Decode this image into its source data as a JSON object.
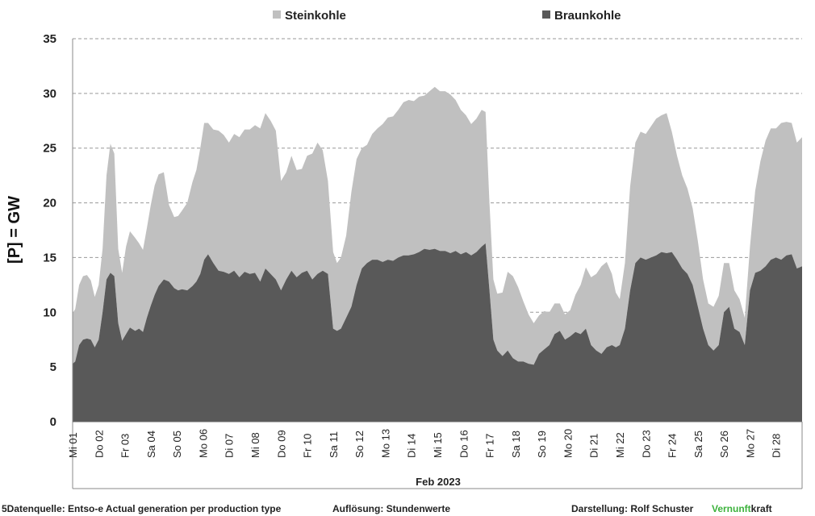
{
  "chart_data": {
    "type": "area",
    "stacked": true,
    "ylabel": "[P]  = GW",
    "xlabel": "Feb 2023",
    "ylim": [
      0,
      35
    ],
    "yticks": [
      0,
      5,
      10,
      15,
      20,
      25,
      30,
      35
    ],
    "grid": true,
    "legend_position": "top",
    "x_tick_labels": [
      "Mi 01",
      "Do 02",
      "Fr 03",
      "Sa 04",
      "So 05",
      "Mo 06",
      "Di 07",
      "Mi 08",
      "Do 09",
      "Fr 10",
      "Sa 11",
      "So 12",
      "Mo 13",
      "Di 14",
      "Mi 15",
      "Do 16",
      "Fr 17",
      "Sa 18",
      "So 19",
      "Mo 20",
      "Di 21",
      "Mi 22",
      "Do 23",
      "Fr 24",
      "Sa 25",
      "So 26",
      "Mo 27",
      "Di 28"
    ],
    "x_day_offset": [
      0,
      1,
      2,
      3,
      4,
      5,
      6,
      7,
      8,
      9,
      10,
      11,
      12,
      13,
      14,
      15,
      16,
      17,
      18,
      19,
      20,
      21,
      22,
      23,
      24,
      25,
      26,
      27
    ],
    "series": [
      {
        "name": "Steinkohle",
        "color": "#c0c0c0",
        "points": [
          [
            0.0,
            4.6
          ],
          [
            0.1,
            4.8
          ],
          [
            0.25,
            5.5
          ],
          [
            0.4,
            5.8
          ],
          [
            0.55,
            5.8
          ],
          [
            0.7,
            5.4
          ],
          [
            0.85,
            4.6
          ],
          [
            1.0,
            5.0
          ],
          [
            1.15,
            5.8
          ],
          [
            1.3,
            9.5
          ],
          [
            1.45,
            11.8
          ],
          [
            1.6,
            11.2
          ],
          [
            1.75,
            6.8
          ],
          [
            1.9,
            6.2
          ],
          [
            2.05,
            8.0
          ],
          [
            2.2,
            8.8
          ],
          [
            2.4,
            8.5
          ],
          [
            2.55,
            7.8
          ],
          [
            2.7,
            7.5
          ],
          [
            2.85,
            8.2
          ],
          [
            3.0,
            9.2
          ],
          [
            3.15,
            10.0
          ],
          [
            3.3,
            10.2
          ],
          [
            3.5,
            9.8
          ],
          [
            3.7,
            7.0
          ],
          [
            3.9,
            6.5
          ],
          [
            4.05,
            6.8
          ],
          [
            4.2,
            7.2
          ],
          [
            4.4,
            8.0
          ],
          [
            4.6,
            9.5
          ],
          [
            4.75,
            10.2
          ],
          [
            4.9,
            11.5
          ],
          [
            5.05,
            12.5
          ],
          [
            5.2,
            12.0
          ],
          [
            5.4,
            12.2
          ],
          [
            5.6,
            12.8
          ],
          [
            5.8,
            12.5
          ],
          [
            6.0,
            12.0
          ],
          [
            6.2,
            12.5
          ],
          [
            6.4,
            12.8
          ],
          [
            6.6,
            13.0
          ],
          [
            6.8,
            13.2
          ],
          [
            7.0,
            13.5
          ],
          [
            7.2,
            14.0
          ],
          [
            7.4,
            14.2
          ],
          [
            7.6,
            14.0
          ],
          [
            7.8,
            13.6
          ],
          [
            8.0,
            10.0
          ],
          [
            8.2,
            9.8
          ],
          [
            8.4,
            10.5
          ],
          [
            8.6,
            9.8
          ],
          [
            8.8,
            9.5
          ],
          [
            9.0,
            10.5
          ],
          [
            9.2,
            11.5
          ],
          [
            9.4,
            12.0
          ],
          [
            9.6,
            11.0
          ],
          [
            9.8,
            8.5
          ],
          [
            10.0,
            7.0
          ],
          [
            10.15,
            6.2
          ],
          [
            10.3,
            6.5
          ],
          [
            10.5,
            7.5
          ],
          [
            10.7,
            10.5
          ],
          [
            10.9,
            11.5
          ],
          [
            11.1,
            11.0
          ],
          [
            11.3,
            10.8
          ],
          [
            11.5,
            11.5
          ],
          [
            11.7,
            12.0
          ],
          [
            11.9,
            12.6
          ],
          [
            12.1,
            13.0
          ],
          [
            12.3,
            13.2
          ],
          [
            12.5,
            13.5
          ],
          [
            12.7,
            14.0
          ],
          [
            12.9,
            14.2
          ],
          [
            13.1,
            14.0
          ],
          [
            13.3,
            14.2
          ],
          [
            13.5,
            14.0
          ],
          [
            13.7,
            14.5
          ],
          [
            13.9,
            14.8
          ],
          [
            14.1,
            14.6
          ],
          [
            14.3,
            14.6
          ],
          [
            14.5,
            14.5
          ],
          [
            14.7,
            13.8
          ],
          [
            14.9,
            13.2
          ],
          [
            15.1,
            12.5
          ],
          [
            15.3,
            12.0
          ],
          [
            15.5,
            12.2
          ],
          [
            15.7,
            12.5
          ],
          [
            15.85,
            12.0
          ],
          [
            16.0,
            8.0
          ],
          [
            16.15,
            5.5
          ],
          [
            16.3,
            5.2
          ],
          [
            16.5,
            5.8
          ],
          [
            16.7,
            7.2
          ],
          [
            16.9,
            7.5
          ],
          [
            17.1,
            6.8
          ],
          [
            17.3,
            5.5
          ],
          [
            17.5,
            4.5
          ],
          [
            17.7,
            3.8
          ],
          [
            17.9,
            3.5
          ],
          [
            18.1,
            3.5
          ],
          [
            18.3,
            3.0
          ],
          [
            18.5,
            2.8
          ],
          [
            18.7,
            2.5
          ],
          [
            18.9,
            2.3
          ],
          [
            19.1,
            2.4
          ],
          [
            19.3,
            3.4
          ],
          [
            19.5,
            4.5
          ],
          [
            19.7,
            5.6
          ],
          [
            19.9,
            6.2
          ],
          [
            20.1,
            7.0
          ],
          [
            20.3,
            8.0
          ],
          [
            20.5,
            7.8
          ],
          [
            20.7,
            6.5
          ],
          [
            20.85,
            5.0
          ],
          [
            21.0,
            4.2
          ],
          [
            21.2,
            6.0
          ],
          [
            21.4,
            9.5
          ],
          [
            21.6,
            11.0
          ],
          [
            21.8,
            11.5
          ],
          [
            22.0,
            11.5
          ],
          [
            22.2,
            12.0
          ],
          [
            22.4,
            12.5
          ],
          [
            22.6,
            12.5
          ],
          [
            22.8,
            12.8
          ],
          [
            23.0,
            11.0
          ],
          [
            23.2,
            9.5
          ],
          [
            23.4,
            8.5
          ],
          [
            23.6,
            7.8
          ],
          [
            23.8,
            7.0
          ],
          [
            24.0,
            6.0
          ],
          [
            24.2,
            4.5
          ],
          [
            24.4,
            3.8
          ],
          [
            24.6,
            4.0
          ],
          [
            24.8,
            4.5
          ],
          [
            25.0,
            4.5
          ],
          [
            25.2,
            4.0
          ],
          [
            25.4,
            3.5
          ],
          [
            25.6,
            3.0
          ],
          [
            25.8,
            2.5
          ],
          [
            26.0,
            4.0
          ],
          [
            26.2,
            7.5
          ],
          [
            26.4,
            10.0
          ],
          [
            26.6,
            11.5
          ],
          [
            26.8,
            12.0
          ],
          [
            27.0,
            11.8
          ],
          [
            27.2,
            12.5
          ],
          [
            27.4,
            12.2
          ],
          [
            27.6,
            12.0
          ],
          [
            27.8,
            11.5
          ],
          [
            28.0,
            11.8
          ]
        ]
      },
      {
        "name": "Braunkohle",
        "color": "#595959",
        "points": [
          [
            0.0,
            5.3
          ],
          [
            0.1,
            5.5
          ],
          [
            0.25,
            7.0
          ],
          [
            0.4,
            7.5
          ],
          [
            0.55,
            7.6
          ],
          [
            0.7,
            7.5
          ],
          [
            0.85,
            6.8
          ],
          [
            1.0,
            7.5
          ],
          [
            1.15,
            10.0
          ],
          [
            1.3,
            13.0
          ],
          [
            1.45,
            13.6
          ],
          [
            1.6,
            13.3
          ],
          [
            1.75,
            9.0
          ],
          [
            1.9,
            7.4
          ],
          [
            2.05,
            8.0
          ],
          [
            2.2,
            8.6
          ],
          [
            2.4,
            8.3
          ],
          [
            2.55,
            8.5
          ],
          [
            2.7,
            8.2
          ],
          [
            2.85,
            9.5
          ],
          [
            3.0,
            10.6
          ],
          [
            3.15,
            11.6
          ],
          [
            3.3,
            12.4
          ],
          [
            3.5,
            13.0
          ],
          [
            3.7,
            12.8
          ],
          [
            3.9,
            12.2
          ],
          [
            4.05,
            12.0
          ],
          [
            4.2,
            12.1
          ],
          [
            4.4,
            12.0
          ],
          [
            4.6,
            12.4
          ],
          [
            4.75,
            12.8
          ],
          [
            4.9,
            13.5
          ],
          [
            5.05,
            14.8
          ],
          [
            5.2,
            15.3
          ],
          [
            5.4,
            14.5
          ],
          [
            5.6,
            13.8
          ],
          [
            5.8,
            13.7
          ],
          [
            6.0,
            13.5
          ],
          [
            6.2,
            13.8
          ],
          [
            6.4,
            13.2
          ],
          [
            6.6,
            13.7
          ],
          [
            6.8,
            13.5
          ],
          [
            7.0,
            13.6
          ],
          [
            7.2,
            12.8
          ],
          [
            7.4,
            14.0
          ],
          [
            7.6,
            13.5
          ],
          [
            7.8,
            13.0
          ],
          [
            8.0,
            12.0
          ],
          [
            8.2,
            13.0
          ],
          [
            8.4,
            13.8
          ],
          [
            8.6,
            13.2
          ],
          [
            8.8,
            13.6
          ],
          [
            9.0,
            13.8
          ],
          [
            9.2,
            13.0
          ],
          [
            9.4,
            13.5
          ],
          [
            9.6,
            13.8
          ],
          [
            9.8,
            13.5
          ],
          [
            10.0,
            8.5
          ],
          [
            10.15,
            8.3
          ],
          [
            10.3,
            8.5
          ],
          [
            10.5,
            9.5
          ],
          [
            10.7,
            10.5
          ],
          [
            10.9,
            12.5
          ],
          [
            11.1,
            14.0
          ],
          [
            11.3,
            14.5
          ],
          [
            11.5,
            14.8
          ],
          [
            11.7,
            14.8
          ],
          [
            11.9,
            14.6
          ],
          [
            12.1,
            14.8
          ],
          [
            12.3,
            14.7
          ],
          [
            12.5,
            15.0
          ],
          [
            12.7,
            15.2
          ],
          [
            12.9,
            15.2
          ],
          [
            13.1,
            15.3
          ],
          [
            13.3,
            15.5
          ],
          [
            13.5,
            15.8
          ],
          [
            13.7,
            15.7
          ],
          [
            13.9,
            15.8
          ],
          [
            14.1,
            15.6
          ],
          [
            14.3,
            15.6
          ],
          [
            14.5,
            15.4
          ],
          [
            14.7,
            15.6
          ],
          [
            14.9,
            15.3
          ],
          [
            15.1,
            15.5
          ],
          [
            15.3,
            15.2
          ],
          [
            15.5,
            15.5
          ],
          [
            15.7,
            16.0
          ],
          [
            15.85,
            16.3
          ],
          [
            16.0,
            12.0
          ],
          [
            16.15,
            7.5
          ],
          [
            16.3,
            6.5
          ],
          [
            16.5,
            6.0
          ],
          [
            16.7,
            6.5
          ],
          [
            16.9,
            5.8
          ],
          [
            17.1,
            5.5
          ],
          [
            17.3,
            5.5
          ],
          [
            17.5,
            5.3
          ],
          [
            17.7,
            5.2
          ],
          [
            17.9,
            6.2
          ],
          [
            18.1,
            6.6
          ],
          [
            18.3,
            7.0
          ],
          [
            18.5,
            8.0
          ],
          [
            18.7,
            8.3
          ],
          [
            18.9,
            7.5
          ],
          [
            19.1,
            7.8
          ],
          [
            19.3,
            8.2
          ],
          [
            19.5,
            8.0
          ],
          [
            19.7,
            8.5
          ],
          [
            19.9,
            7.0
          ],
          [
            20.1,
            6.5
          ],
          [
            20.3,
            6.2
          ],
          [
            20.5,
            6.8
          ],
          [
            20.7,
            7.0
          ],
          [
            20.85,
            6.8
          ],
          [
            21.0,
            7.0
          ],
          [
            21.2,
            8.5
          ],
          [
            21.4,
            12.0
          ],
          [
            21.6,
            14.5
          ],
          [
            21.8,
            15.0
          ],
          [
            22.0,
            14.8
          ],
          [
            22.2,
            15.0
          ],
          [
            22.4,
            15.2
          ],
          [
            22.6,
            15.5
          ],
          [
            22.8,
            15.4
          ],
          [
            23.0,
            15.5
          ],
          [
            23.2,
            14.8
          ],
          [
            23.4,
            14.0
          ],
          [
            23.6,
            13.5
          ],
          [
            23.8,
            12.5
          ],
          [
            24.0,
            10.5
          ],
          [
            24.2,
            8.5
          ],
          [
            24.4,
            7.0
          ],
          [
            24.6,
            6.5
          ],
          [
            24.8,
            7.0
          ],
          [
            25.0,
            10.0
          ],
          [
            25.2,
            10.5
          ],
          [
            25.4,
            8.5
          ],
          [
            25.6,
            8.2
          ],
          [
            25.8,
            7.0
          ],
          [
            26.0,
            12.0
          ],
          [
            26.2,
            13.6
          ],
          [
            26.4,
            13.8
          ],
          [
            26.6,
            14.2
          ],
          [
            26.8,
            14.8
          ],
          [
            27.0,
            15.0
          ],
          [
            27.2,
            14.8
          ],
          [
            27.4,
            15.2
          ],
          [
            27.6,
            15.3
          ],
          [
            27.8,
            14.0
          ],
          [
            28.0,
            14.2
          ]
        ]
      }
    ]
  },
  "footer": {
    "source": "5Datenquelle: Entso-e  Actual generation per production type",
    "resolution": "Auflösung: Stundenwerte",
    "credit_label": "Darstellung:  Rolf Schuster",
    "brand_green": "Vernunft",
    "brand_rest": "kraft",
    "brand_color": "#3cb23c"
  }
}
